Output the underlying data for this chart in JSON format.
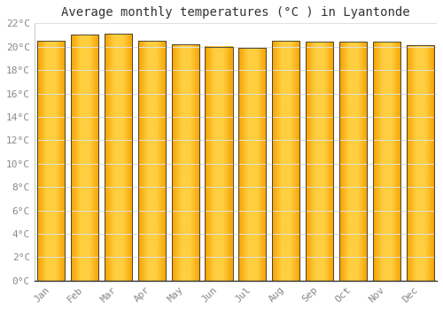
{
  "title": "Average monthly temperatures (°C ) in Lyantonde",
  "months": [
    "Jan",
    "Feb",
    "Mar",
    "Apr",
    "May",
    "Jun",
    "Jul",
    "Aug",
    "Sep",
    "Oct",
    "Nov",
    "Dec"
  ],
  "values": [
    20.5,
    21.0,
    21.1,
    20.5,
    20.2,
    20.0,
    19.9,
    20.5,
    20.4,
    20.4,
    20.4,
    20.1
  ],
  "ylim": [
    0,
    22
  ],
  "yticks": [
    0,
    2,
    4,
    6,
    8,
    10,
    12,
    14,
    16,
    18,
    20,
    22
  ],
  "ytick_labels": [
    "0°C",
    "2°C",
    "4°C",
    "6°C",
    "8°C",
    "10°C",
    "12°C",
    "14°C",
    "16°C",
    "18°C",
    "20°C",
    "22°C"
  ],
  "background_color": "#ffffff",
  "grid_color": "#e0e0e0",
  "title_fontsize": 10,
  "tick_fontsize": 8,
  "bar_color_center": "#FFCF40",
  "bar_color_edge": "#F5A000",
  "bar_outline_color": "#333333",
  "bar_width": 0.82
}
